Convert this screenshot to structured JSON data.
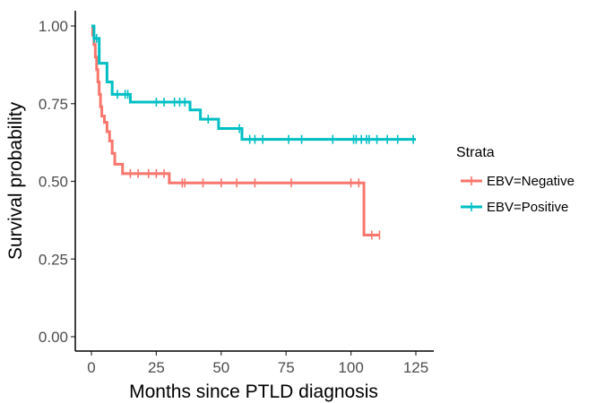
{
  "chart_data": {
    "type": "line",
    "subtype": "kaplan-meier",
    "title": "",
    "xlabel": "Months since PTLD diagnosis",
    "ylabel": "Survival probability",
    "xlim": [
      0,
      125
    ],
    "ylim": [
      0,
      1
    ],
    "x_ticks": [
      "0",
      "25",
      "50",
      "75",
      "100",
      "125"
    ],
    "y_ticks": [
      "0.00",
      "0.25",
      "0.50",
      "0.75",
      "1.00"
    ],
    "grid": false,
    "legend_title": "Strata",
    "legend_position": "right",
    "series": [
      {
        "name": "EBV=Negative",
        "color": "#F8766D",
        "steps": [
          [
            0,
            1.0
          ],
          [
            0.5,
            0.97
          ],
          [
            1,
            0.94
          ],
          [
            1.5,
            0.9
          ],
          [
            2,
            0.86
          ],
          [
            2.5,
            0.82
          ],
          [
            3,
            0.78
          ],
          [
            3.5,
            0.74
          ],
          [
            4,
            0.71
          ],
          [
            5,
            0.69
          ],
          [
            6,
            0.66
          ],
          [
            7,
            0.63
          ],
          [
            8,
            0.59
          ],
          [
            9,
            0.555
          ],
          [
            12,
            0.525
          ],
          [
            30,
            0.495
          ],
          [
            105,
            0.327
          ]
        ],
        "end_x": 111,
        "censor_x": [
          15,
          18,
          22,
          25,
          28,
          35,
          36,
          43,
          50,
          56,
          63,
          77,
          100,
          103,
          108,
          111
        ]
      },
      {
        "name": "EBV=Positive",
        "color": "#00BFC4",
        "steps": [
          [
            0,
            1.0
          ],
          [
            1,
            0.96
          ],
          [
            3,
            0.88
          ],
          [
            6,
            0.82
          ],
          [
            8,
            0.78
          ],
          [
            15,
            0.755
          ],
          [
            38,
            0.73
          ],
          [
            42,
            0.7
          ],
          [
            49,
            0.67
          ],
          [
            58,
            0.635
          ]
        ],
        "end_x": 125,
        "censor_x": [
          1,
          2,
          10,
          13,
          14,
          25,
          28,
          32,
          34,
          36,
          45,
          57,
          61,
          63,
          66,
          76,
          81,
          93,
          101,
          102,
          104,
          106,
          107,
          110,
          114,
          118,
          124
        ]
      }
    ]
  }
}
